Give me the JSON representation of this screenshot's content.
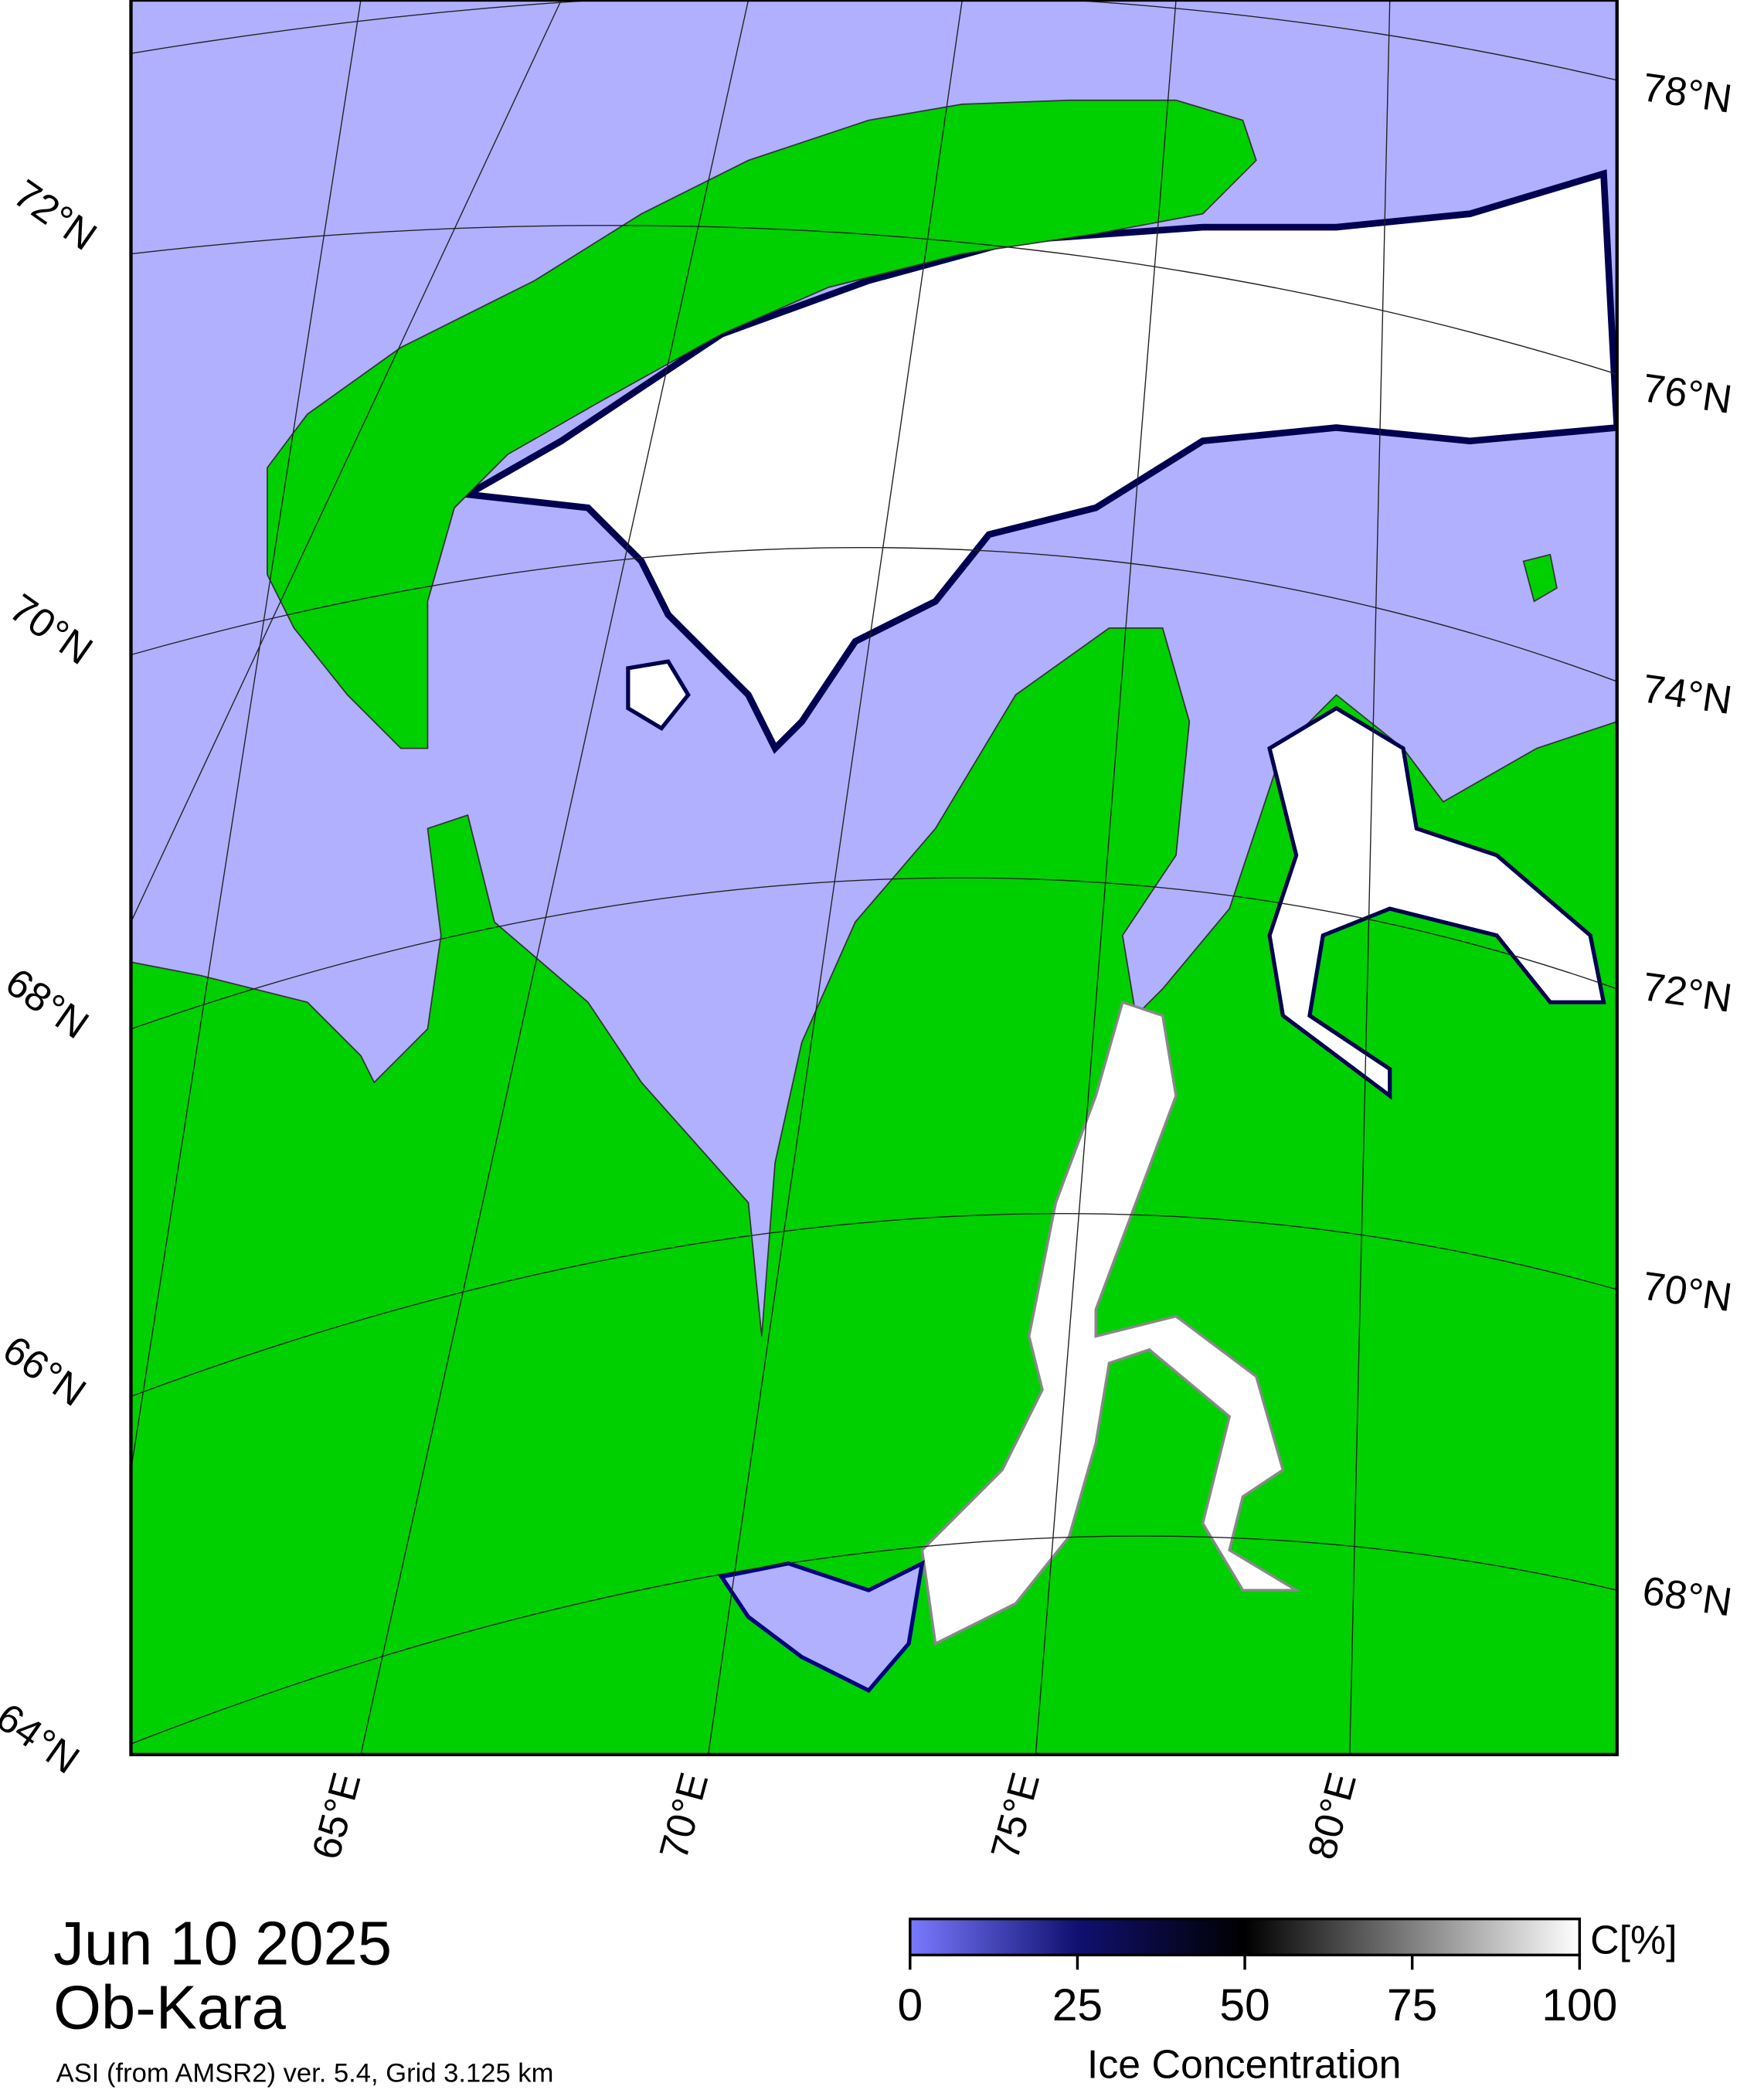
{
  "header": {
    "date": "Jun 10 2025",
    "region": "Ob-Kara",
    "source": "ASI (from AMSR2) ver. 5.4,  Grid 3.125 km"
  },
  "graticule": {
    "lat_labels_left": [
      "72°N",
      "70°N",
      "68°N",
      "66°N",
      "64°N"
    ],
    "lat_labels_right": [
      "78°N",
      "76°N",
      "74°N",
      "72°N",
      "70°N",
      "68°N"
    ],
    "lon_labels": [
      "65°E",
      "70°E",
      "75°E",
      "80°E"
    ]
  },
  "colorbar": {
    "unit": "C[%]",
    "label": "Ice Concentration",
    "lim": [
      0,
      100
    ],
    "ticks": [
      0,
      25,
      50,
      75,
      100
    ]
  }
}
